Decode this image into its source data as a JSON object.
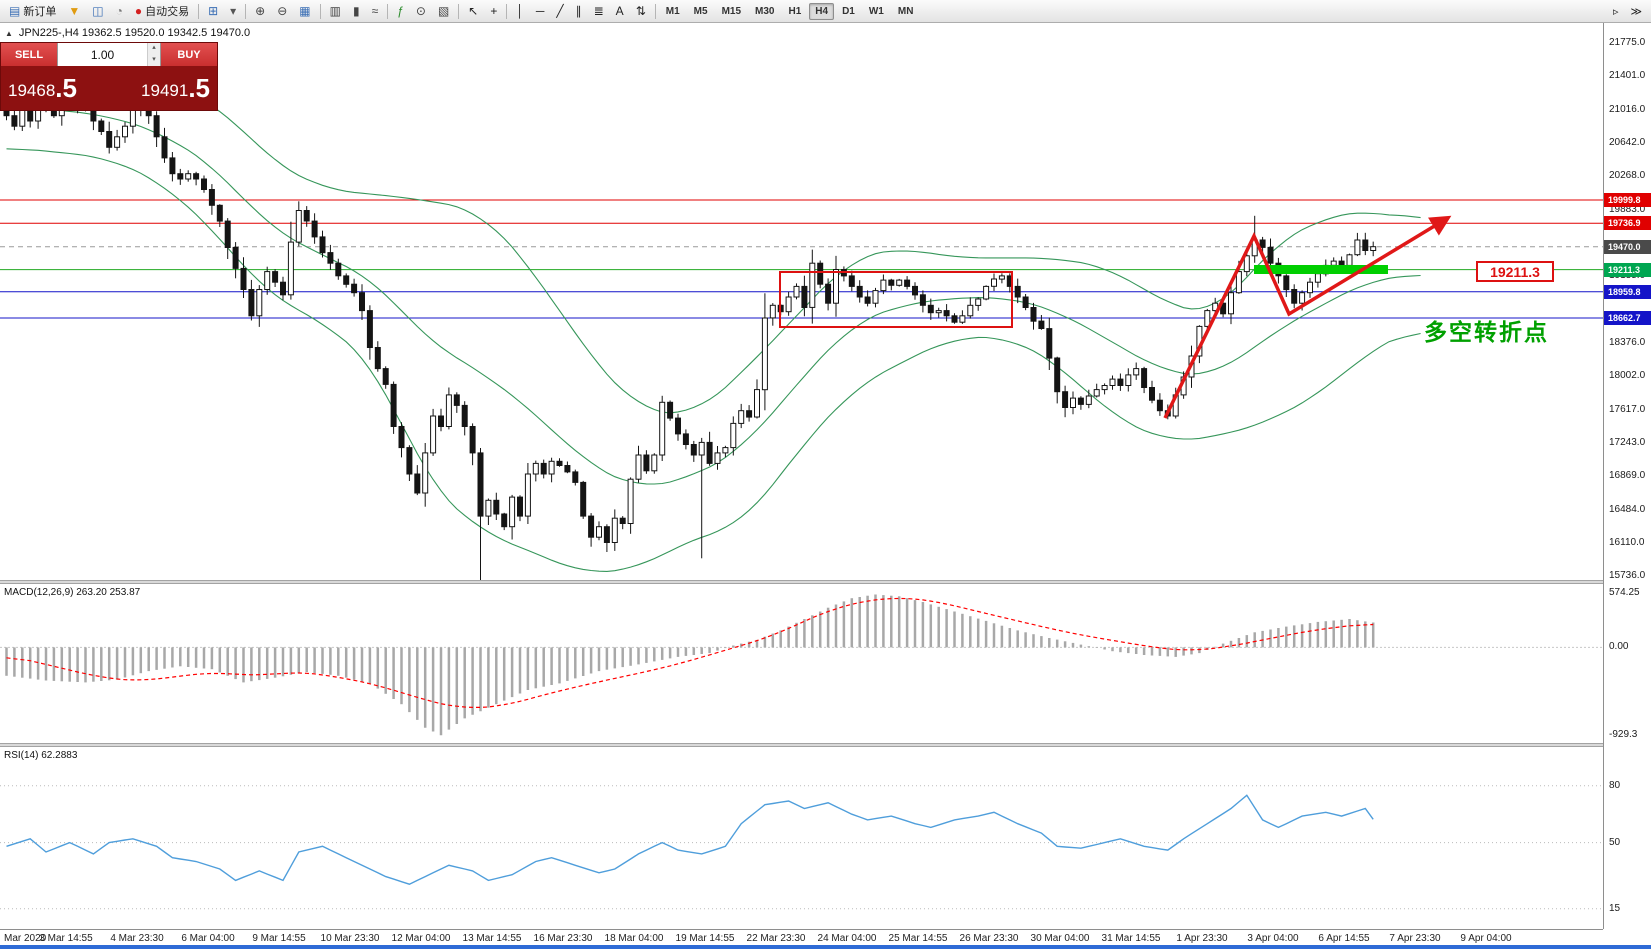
{
  "toolbar": {
    "buttons": [
      {
        "name": "new-order-button",
        "glyph": "▤",
        "glyph_color": "#3b6fb5",
        "label": "新订单"
      },
      {
        "name": "funnel-icon",
        "glyph": "▼",
        "glyph_color": "#e09b10"
      },
      {
        "name": "market-watch-icon",
        "glyph": "◫",
        "glyph_color": "#3b6fb5"
      },
      {
        "name": "data-window-icon",
        "glyph": "◔",
        "glyph_color": "#777777"
      },
      {
        "name": "auto-trading-button",
        "glyph": "●",
        "glyph_color": "#d42020",
        "label": "自动交易"
      },
      {
        "sep": true
      },
      {
        "name": "new-chart-icon",
        "glyph": "⊞",
        "glyph_color": "#3b6fb5"
      },
      {
        "name": "profiles-icon",
        "glyph": "▾",
        "glyph_color": "#555555"
      },
      {
        "sep": true
      },
      {
        "name": "zoom-in-icon",
        "glyph": "⊕",
        "glyph_color": "#444444"
      },
      {
        "name": "zoom-out-icon",
        "glyph": "⊖",
        "glyph_color": "#444444"
      },
      {
        "name": "tile-windows-icon",
        "glyph": "▦",
        "glyph_color": "#3b6fb5"
      },
      {
        "sep": true
      },
      {
        "name": "bar-chart-icon",
        "glyph": "▥",
        "glyph_color": "#444444"
      },
      {
        "name": "candlestick-chart-icon",
        "glyph": "▮",
        "glyph_color": "#444444"
      },
      {
        "name": "line-chart-icon",
        "glyph": "≈",
        "glyph_color": "#444444"
      },
      {
        "sep": true
      },
      {
        "name": "indicators-icon",
        "glyph": "ƒ",
        "glyph_color": "#2c8c2c"
      },
      {
        "name": "periods-icon",
        "glyph": "⊙",
        "glyph_color": "#444444"
      },
      {
        "name": "templates-icon",
        "glyph": "▧",
        "glyph_color": "#444444"
      },
      {
        "sep": true
      },
      {
        "name": "cursor-icon",
        "glyph": "↖",
        "glyph_color": "#222222"
      },
      {
        "name": "crosshair-icon",
        "glyph": "+",
        "glyph_color": "#222222"
      },
      {
        "sep": true
      },
      {
        "name": "vertical-line-icon",
        "glyph": "│",
        "glyph_color": "#222222"
      },
      {
        "name": "horizontal-line-icon",
        "glyph": "─",
        "glyph_color": "#222222"
      },
      {
        "name": "trendline-icon",
        "glyph": "╱",
        "glyph_color": "#222222"
      },
      {
        "name": "equidistant-channel-icon",
        "glyph": "∥",
        "glyph_color": "#222222"
      },
      {
        "name": "fibonacci-icon",
        "glyph": "≣",
        "glyph_color": "#222222"
      },
      {
        "name": "text-tool-icon",
        "glyph": "A",
        "glyph_color": "#222222"
      },
      {
        "name": "arrows-tool-icon",
        "glyph": "⇅",
        "glyph_color": "#222222"
      },
      {
        "sep": true
      }
    ],
    "timeframes": [
      "M1",
      "M5",
      "M15",
      "M30",
      "H1",
      "H4",
      "D1",
      "W1",
      "MN"
    ],
    "active_timeframe": "H4",
    "right_buttons": [
      {
        "name": "chart-shift-icon",
        "glyph": "▹"
      },
      {
        "name": "auto-scroll-icon",
        "glyph": "≫"
      }
    ]
  },
  "chart": {
    "panel_toggle": "▲",
    "symbol_info": "JPN225-,H4  19362.5 19520.0 19342.5 19470.0",
    "axis_labels": [
      21775.0,
      21401.0,
      21016.0,
      20642.0,
      20268.0,
      19883.0,
      19135.0,
      18376.0,
      18002.0,
      17617.0,
      17243.0,
      16869.0,
      16484.0,
      16110.0,
      15736.0
    ],
    "price_tags": [
      {
        "text": "19999.8",
        "value": 19999.8,
        "color": "#e00000"
      },
      {
        "text": "19736.9",
        "value": 19736.9,
        "color": "#e00000"
      },
      {
        "text": "19470.0",
        "value": 19470.0,
        "color": "#4a4a4a"
      },
      {
        "text": "19211.3",
        "value": 19211.3,
        "color": "#00a651"
      },
      {
        "text": "18959.8",
        "value": 18959.8,
        "color": "#1414c8"
      },
      {
        "text": "18662.7",
        "value": 18662.7,
        "color": "#1414c8"
      }
    ],
    "hlines": [
      {
        "value": 19999.8,
        "color": "#e00000",
        "style": "solid"
      },
      {
        "value": 19736.9,
        "color": "#e00000",
        "style": "solid"
      },
      {
        "value": 19470.0,
        "color": "#9a9a9a",
        "style": "dashed"
      },
      {
        "value": 19211.3,
        "color": "#22aa22",
        "style": "solid"
      },
      {
        "value": 18959.8,
        "color": "#1414c8",
        "style": "solid"
      },
      {
        "value": 18662.7,
        "color": "#1414c8",
        "style": "solid"
      }
    ]
  },
  "trade_panel": {
    "sell_label": "SELL",
    "buy_label": "BUY",
    "volume": "1.00",
    "sell_price": {
      "big": "19468",
      "pips": ".5"
    },
    "buy_price": {
      "big": "19491",
      "pips": ".5"
    }
  },
  "annotations": {
    "price_box_label": "19211.3",
    "turning_point_text": "多空转折点"
  },
  "macd_panel": {
    "label": "MACD(12,26,9) 263.20 253.87",
    "scale": [
      574.25,
      0,
      -929.3
    ],
    "scale_text": [
      "574.25",
      "0.00",
      "-929.3"
    ]
  },
  "rsi_panel": {
    "label": "RSI(14) 62.2883",
    "scale": [
      80,
      50,
      15
    ],
    "scale_text": [
      "80",
      "50",
      "15"
    ]
  },
  "time_axis": [
    "Mar 2020",
    "3 Mar 14:55",
    "4 Mar 23:30",
    "6 Mar 04:00",
    "9 Mar 14:55",
    "10 Mar 23:30",
    "12 Mar 04:00",
    "13 Mar 14:55",
    "16 Mar 23:30",
    "18 Mar 04:00",
    "19 Mar 14:55",
    "22 Mar 23:30",
    "24 Mar 04:00",
    "25 Mar 14:55",
    "26 Mar 23:30",
    "30 Mar 04:00",
    "31 Mar 14:55",
    "1 Apr 23:30",
    "3 Apr 04:00",
    "6 Apr 14:55",
    "7 Apr 23:30",
    "9 Apr 04:00"
  ],
  "chart_data": {
    "type": "candlestick",
    "symbol": "JPN225-",
    "timeframe": "H4",
    "ohlc": {
      "open": 19362.5,
      "high": 19520.0,
      "low": 19342.5,
      "close": 19470.0
    },
    "ylim": [
      15694,
      22005
    ],
    "closes": [
      20955,
      20836,
      21074,
      20895,
      21014,
      21134,
      20955,
      21194,
      21253,
      21074,
      21134,
      20895,
      20776,
      20597,
      20716,
      20836,
      21014,
      21134,
      20955,
      20716,
      20477,
      20298,
      20238,
      20298,
      20238,
      20119,
      19940,
      19761,
      19462,
      19224,
      18985,
      18687,
      18985,
      19188,
      19068,
      18925,
      19522,
      19880,
      19761,
      19582,
      19403,
      19283,
      19140,
      19045,
      18949,
      18746,
      18328,
      18089,
      17910,
      17433,
      17194,
      16895,
      16680,
      17134,
      17552,
      17433,
      17791,
      17672,
      17433,
      17134,
      16418,
      16597,
      16442,
      16298,
      16633,
      16418,
      16895,
      17015,
      16895,
      17039,
      16991,
      16919,
      16800,
      16418,
      16179,
      16298,
      16119,
      16394,
      16334,
      16836,
      17110,
      16931,
      17110,
      17707,
      17528,
      17349,
      17229,
      17110,
      17253,
      17015,
      17134,
      17194,
      17468,
      17612,
      17540,
      17851,
      18663,
      18806,
      18734,
      18901,
      19021,
      18782,
      19283,
      19045,
      18830,
      19212,
      19140,
      19021,
      18901,
      18830,
      18973,
      19092,
      19033,
      19092,
      19021,
      18925,
      18806,
      18722,
      18746,
      18687,
      18615,
      18687,
      18806,
      18878,
      19021,
      19104,
      19140,
      19021,
      18901,
      18782,
      18627,
      18543,
      18209,
      17827,
      17648,
      17755,
      17684,
      17779,
      17851,
      17898,
      17970,
      17898,
      18018,
      18089,
      17875,
      17731,
      17612,
      17552,
      17791,
      17994,
      18232,
      18567,
      18746,
      18830,
      18710,
      18949,
      19188,
      19367,
      19546,
      19462,
      19283,
      19140,
      18985,
      18830,
      18949,
      19068,
      19164,
      19259,
      19307,
      19259,
      19379,
      19546,
      19427,
      19470
    ],
    "wick_overrides": {
      "8": {
        "high": 21700
      },
      "37": {
        "high": 19985
      },
      "60": {
        "low": 15560
      },
      "88": {
        "low": 15940
      },
      "102": {
        "high": 19438
      },
      "158": {
        "high": 19821
      }
    },
    "bollinger": {
      "upper_anchors": [
        [
          0,
          21552
        ],
        [
          7,
          21492
        ],
        [
          13,
          21433
        ],
        [
          20,
          21313
        ],
        [
          27,
          21074
        ],
        [
          33,
          20477
        ],
        [
          40,
          20119
        ],
        [
          47,
          20060
        ],
        [
          53,
          20000
        ],
        [
          60,
          19880
        ],
        [
          67,
          19164
        ],
        [
          73,
          18328
        ],
        [
          80,
          17612
        ],
        [
          87,
          17552
        ],
        [
          93,
          18030
        ],
        [
          100,
          18687
        ],
        [
          107,
          19343
        ],
        [
          113,
          19463
        ],
        [
          120,
          19343
        ],
        [
          127,
          19343
        ],
        [
          133,
          19343
        ],
        [
          140,
          19224
        ],
        [
          147,
          18806
        ],
        [
          153,
          18687
        ],
        [
          160,
          19463
        ],
        [
          167,
          19821
        ],
        [
          173,
          19880
        ],
        [
          179,
          19761
        ]
      ],
      "lower_anchors": [
        [
          0,
          20597
        ],
        [
          7,
          20537
        ],
        [
          13,
          20477
        ],
        [
          20,
          20179
        ],
        [
          27,
          19582
        ],
        [
          33,
          18925
        ],
        [
          40,
          18627
        ],
        [
          47,
          18089
        ],
        [
          53,
          16835
        ],
        [
          60,
          16238
        ],
        [
          67,
          15999
        ],
        [
          73,
          15761
        ],
        [
          80,
          15820
        ],
        [
          87,
          16179
        ],
        [
          93,
          16298
        ],
        [
          100,
          17134
        ],
        [
          107,
          17851
        ],
        [
          113,
          18149
        ],
        [
          120,
          18447
        ],
        [
          127,
          18447
        ],
        [
          133,
          18149
        ],
        [
          140,
          17552
        ],
        [
          147,
          17254
        ],
        [
          153,
          17313
        ],
        [
          160,
          17492
        ],
        [
          167,
          17851
        ],
        [
          173,
          18328
        ],
        [
          179,
          18567
        ]
      ]
    },
    "macd": {
      "ylim": [
        -1000,
        660
      ],
      "current": [
        263.2,
        253.87
      ],
      "hist_anchors": [
        [
          0,
          -300
        ],
        [
          5,
          -350
        ],
        [
          10,
          -370
        ],
        [
          14,
          -340
        ],
        [
          18,
          -250
        ],
        [
          22,
          -200
        ],
        [
          26,
          -230
        ],
        [
          30,
          -370
        ],
        [
          34,
          -320
        ],
        [
          38,
          -260
        ],
        [
          42,
          -300
        ],
        [
          46,
          -380
        ],
        [
          50,
          -600
        ],
        [
          53,
          -850
        ],
        [
          55,
          -929
        ],
        [
          58,
          -750
        ],
        [
          62,
          -600
        ],
        [
          66,
          -450
        ],
        [
          70,
          -380
        ],
        [
          75,
          -250
        ],
        [
          80,
          -180
        ],
        [
          85,
          -100
        ],
        [
          89,
          -60
        ],
        [
          92,
          20
        ],
        [
          95,
          80
        ],
        [
          98,
          180
        ],
        [
          101,
          300
        ],
        [
          104,
          420
        ],
        [
          107,
          520
        ],
        [
          110,
          560
        ],
        [
          113,
          540
        ],
        [
          116,
          480
        ],
        [
          120,
          380
        ],
        [
          124,
          280
        ],
        [
          128,
          180
        ],
        [
          132,
          100
        ],
        [
          136,
          30
        ],
        [
          140,
          -40
        ],
        [
          144,
          -80
        ],
        [
          148,
          -100
        ],
        [
          151,
          -60
        ],
        [
          154,
          40
        ],
        [
          158,
          160
        ],
        [
          162,
          220
        ],
        [
          166,
          270
        ],
        [
          170,
          300
        ],
        [
          173,
          263
        ]
      ],
      "signal_anchors": [
        [
          0,
          -80
        ],
        [
          6,
          -200
        ],
        [
          12,
          -320
        ],
        [
          17,
          -360
        ],
        [
          22,
          -300
        ],
        [
          27,
          -260
        ],
        [
          32,
          -310
        ],
        [
          36,
          -250
        ],
        [
          42,
          -310
        ],
        [
          48,
          -420
        ],
        [
          53,
          -560
        ],
        [
          58,
          -650
        ],
        [
          63,
          -620
        ],
        [
          68,
          -500
        ],
        [
          73,
          -400
        ],
        [
          78,
          -310
        ],
        [
          84,
          -200
        ],
        [
          89,
          -80
        ],
        [
          93,
          20
        ],
        [
          97,
          120
        ],
        [
          101,
          280
        ],
        [
          105,
          420
        ],
        [
          109,
          500
        ],
        [
          113,
          530
        ],
        [
          117,
          500
        ],
        [
          121,
          420
        ],
        [
          126,
          320
        ],
        [
          131,
          220
        ],
        [
          136,
          130
        ],
        [
          141,
          60
        ],
        [
          146,
          -10
        ],
        [
          150,
          -40
        ],
        [
          154,
          0
        ],
        [
          158,
          60
        ],
        [
          162,
          130
        ],
        [
          166,
          190
        ],
        [
          170,
          230
        ],
        [
          173,
          254
        ]
      ]
    },
    "rsi": {
      "ylim": [
        8,
        100
      ],
      "current": 62.2883,
      "anchors": [
        [
          0,
          48
        ],
        [
          3,
          52
        ],
        [
          5,
          45
        ],
        [
          8,
          50
        ],
        [
          11,
          44
        ],
        [
          13,
          50
        ],
        [
          16,
          52
        ],
        [
          19,
          48
        ],
        [
          21,
          42
        ],
        [
          24,
          40
        ],
        [
          27,
          36
        ],
        [
          29,
          30
        ],
        [
          32,
          35
        ],
        [
          35,
          30
        ],
        [
          37,
          45
        ],
        [
          40,
          48
        ],
        [
          43,
          42
        ],
        [
          45,
          38
        ],
        [
          48,
          32
        ],
        [
          51,
          28
        ],
        [
          53,
          32
        ],
        [
          56,
          38
        ],
        [
          59,
          35
        ],
        [
          61,
          30
        ],
        [
          64,
          33
        ],
        [
          67,
          40
        ],
        [
          69,
          42
        ],
        [
          72,
          38
        ],
        [
          75,
          34
        ],
        [
          77,
          36
        ],
        [
          80,
          44
        ],
        [
          83,
          50
        ],
        [
          85,
          46
        ],
        [
          88,
          44
        ],
        [
          91,
          48
        ],
        [
          93,
          60
        ],
        [
          96,
          70
        ],
        [
          99,
          72
        ],
        [
          101,
          68
        ],
        [
          104,
          71
        ],
        [
          107,
          65
        ],
        [
          109,
          62
        ],
        [
          112,
          64
        ],
        [
          115,
          60
        ],
        [
          117,
          58
        ],
        [
          120,
          62
        ],
        [
          123,
          64
        ],
        [
          125,
          66
        ],
        [
          128,
          60
        ],
        [
          131,
          55
        ],
        [
          133,
          48
        ],
        [
          136,
          47
        ],
        [
          139,
          50
        ],
        [
          141,
          52
        ],
        [
          144,
          48
        ],
        [
          147,
          46
        ],
        [
          149,
          52
        ],
        [
          152,
          60
        ],
        [
          155,
          68
        ],
        [
          157,
          75
        ],
        [
          159,
          62
        ],
        [
          161,
          58
        ],
        [
          164,
          64
        ],
        [
          167,
          66
        ],
        [
          169,
          64
        ],
        [
          172,
          68
        ],
        [
          173,
          62.3
        ]
      ]
    },
    "levels": {
      "resistance": [
        19999.8,
        19736.9
      ],
      "pivot": 19211.3,
      "support": [
        18959.8,
        18662.7
      ],
      "bid": 19470.0
    }
  }
}
